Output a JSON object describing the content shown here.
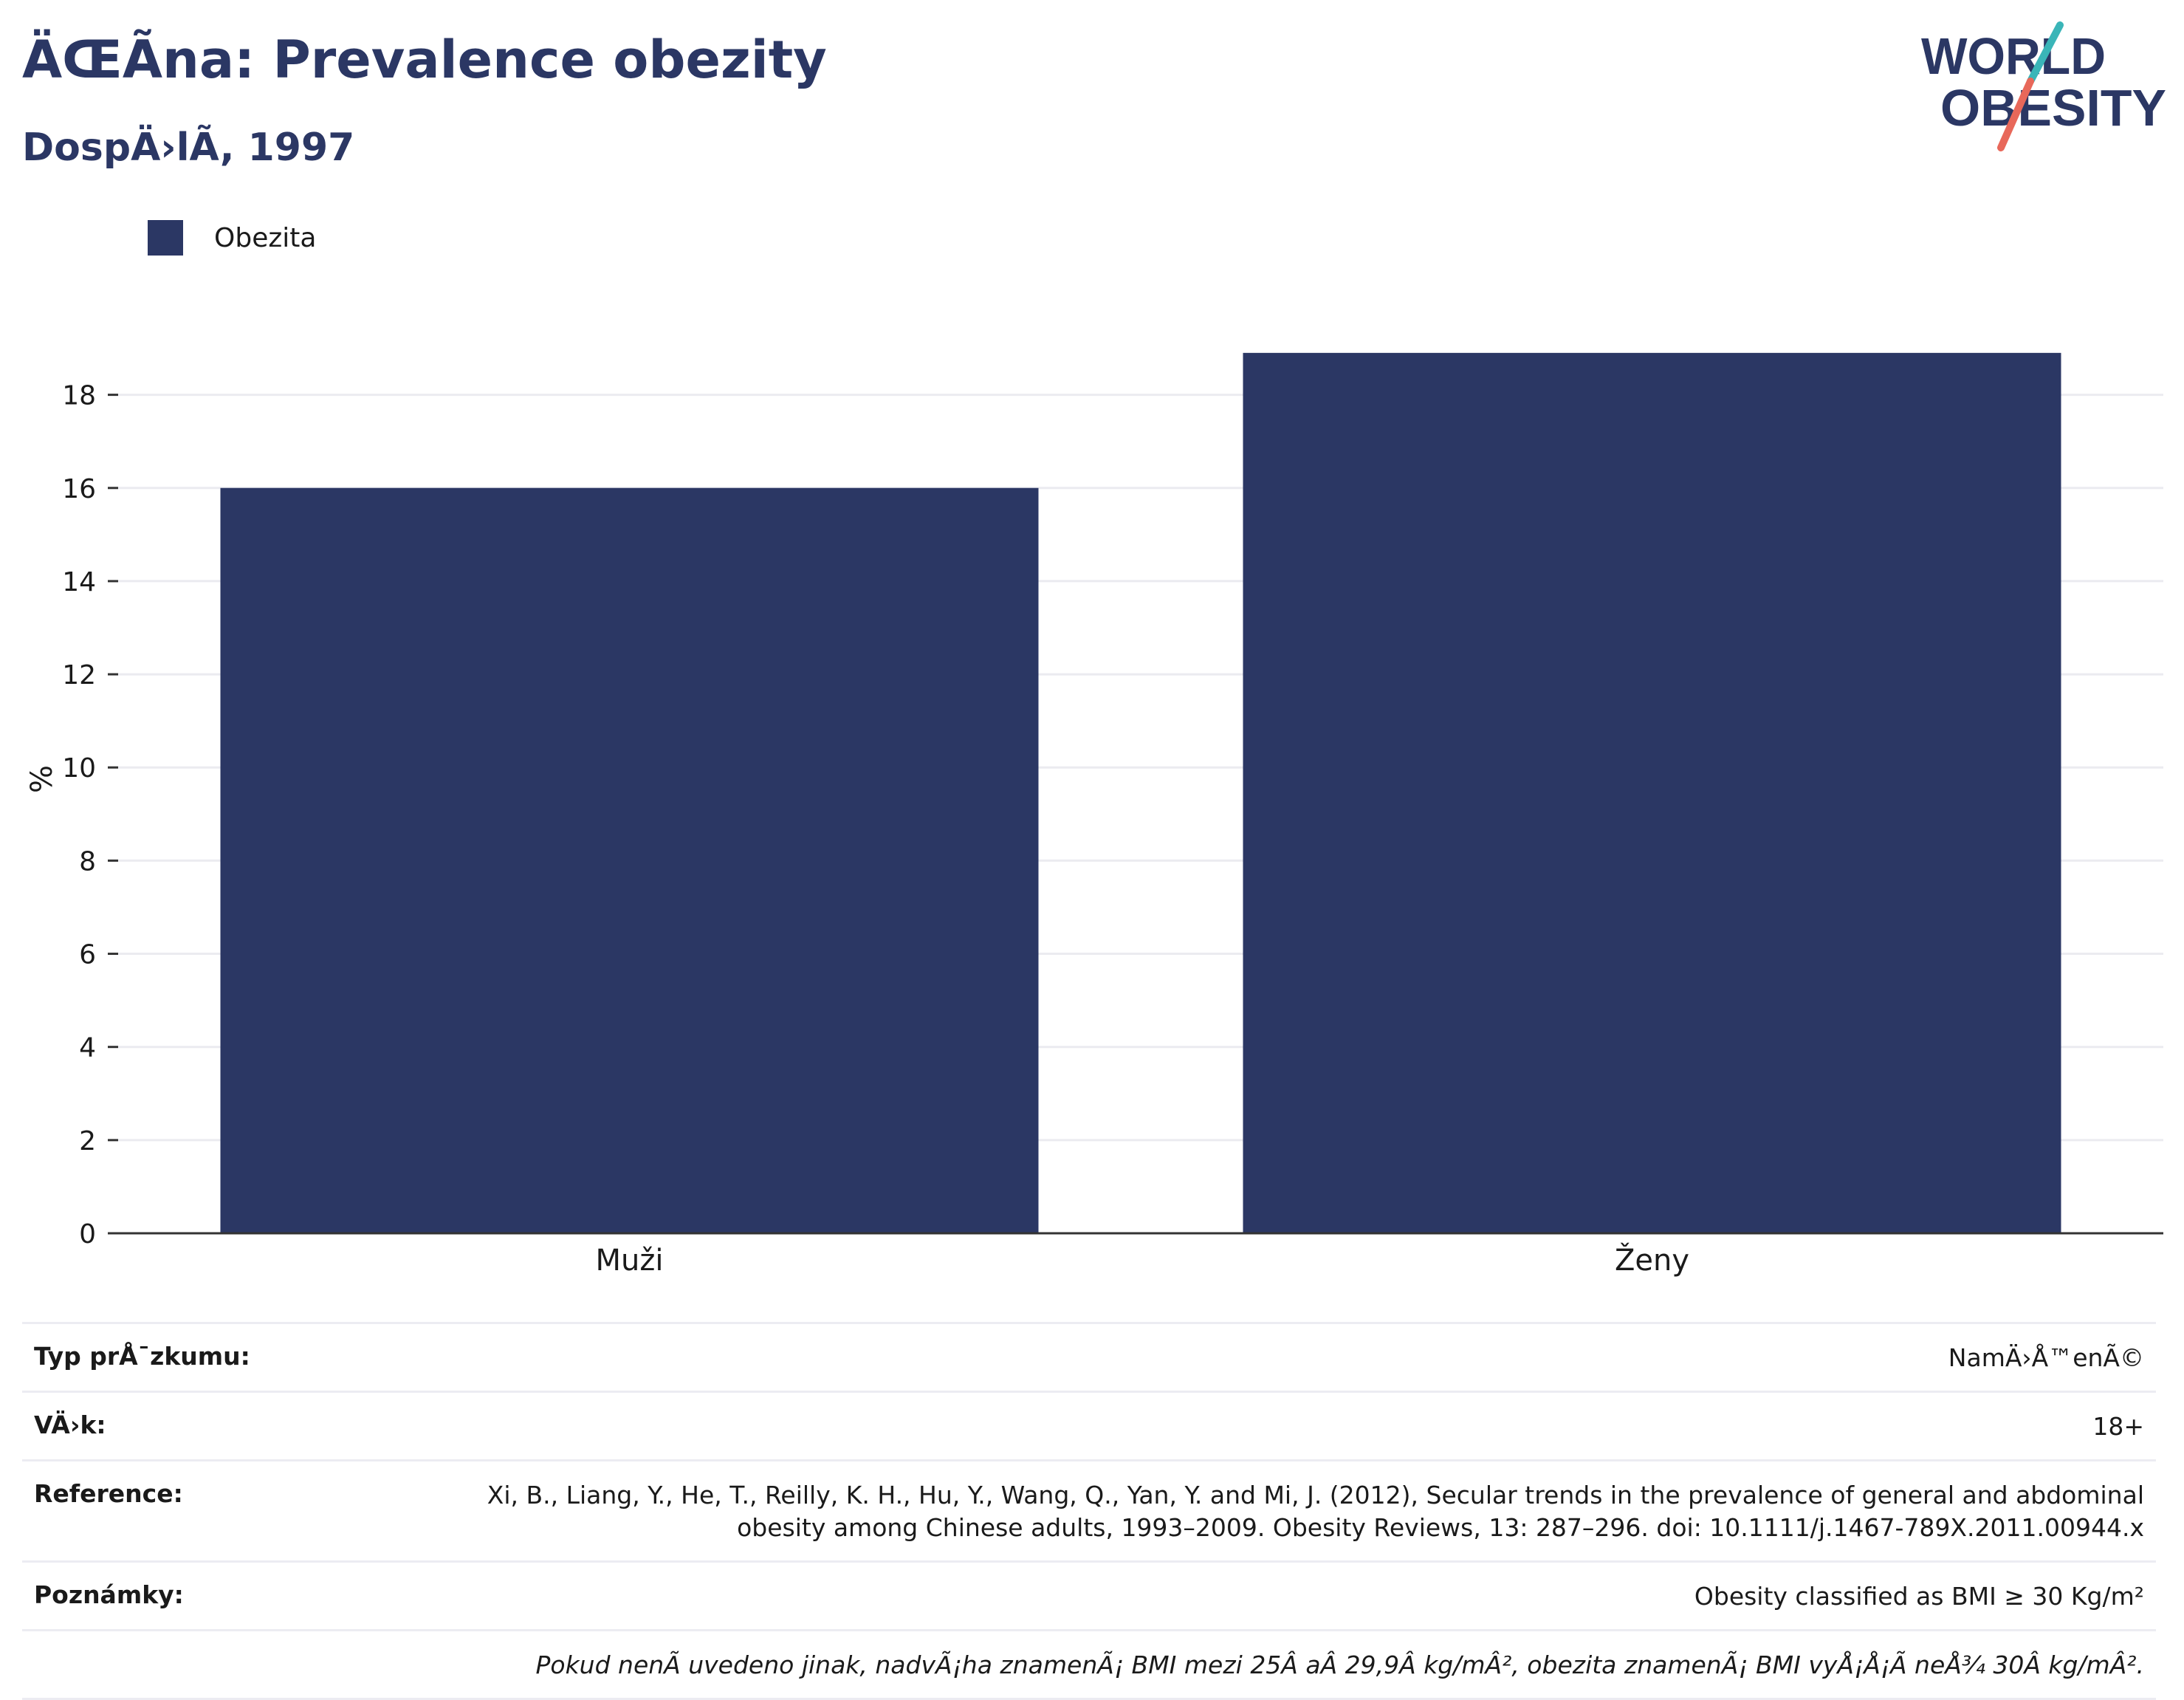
{
  "header": {
    "title": "ÄŒÃna: Prevalence obezity",
    "subtitle": "DospÄ›lÃ, 1997"
  },
  "logo": {
    "line1": "WORLD",
    "line2": "OBESITY",
    "text_color": "#2b3764",
    "accent_teal": "#3ab5b8",
    "accent_red": "#e8685a"
  },
  "chart_data": {
    "type": "bar",
    "categories": [
      "Muži",
      "Ženy"
    ],
    "series": [
      {
        "name": "Obezita",
        "values": [
          16.0,
          18.9
        ],
        "color": "#2b3764"
      }
    ],
    "ylabel": "%",
    "xlabel": "",
    "ylim": [
      0,
      19.5
    ],
    "yticks": [
      0,
      2,
      4,
      6,
      8,
      10,
      12,
      14,
      16,
      18
    ],
    "grid": true,
    "legend": "top-left"
  },
  "info": {
    "rows": [
      {
        "label": "Typ prÅ¯zkumu:",
        "value": "NamÄ›Å™enÃ©"
      },
      {
        "label": "VÄ›k:",
        "value": "18+"
      },
      {
        "label": "Reference:",
        "value_lines": [
          "Xi, B., Liang, Y., He, T., Reilly, K. H., Hu, Y., Wang, Q., Yan, Y. and Mi, J. (2012), Secular trends in the prevalence of general and abdominal",
          "obesity among Chinese adults, 1993–2009. Obesity Reviews, 13: 287–296. doi: 10.1111/j.1467-789X.2011.00944.x"
        ]
      },
      {
        "label": "Poznámky:",
        "value": "Obesity classified as BMI ≥ 30 Kg/m²"
      }
    ],
    "note": "Pokud nenÃ uvedeno jinak, nadvÃ¡ha znamenÃ¡ BMI mezi 25Â aÂ 29,9Â kg/mÂ², obezita znamenÃ¡ BMI vyÅ¡Å¡Ã neÅ¾ 30Â kg/mÂ²."
  }
}
